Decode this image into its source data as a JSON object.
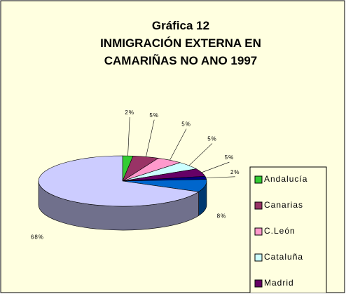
{
  "chart_data": {
    "type": "pie",
    "title": [
      "Gráfica 12",
      "INMIGRACIÓN EXTERNA EN",
      "CAMARIÑAS NO ANO 1997"
    ],
    "categories": [
      "Andalucía",
      "Canarias",
      "C.León",
      "Cataluña",
      "Madrid",
      null,
      null,
      null
    ],
    "values": [
      2,
      5,
      5,
      5,
      5,
      2,
      8,
      68
    ],
    "value_labels": [
      "2%",
      "5%",
      "5%",
      "5%",
      "5%",
      "2%",
      "8%",
      "68%"
    ],
    "colors": [
      "#33cc33",
      "#993366",
      "#ff99cc",
      "#ccffff",
      "#660066",
      "#000080",
      "#0066cc",
      "#ccccff"
    ],
    "legend": "right"
  }
}
